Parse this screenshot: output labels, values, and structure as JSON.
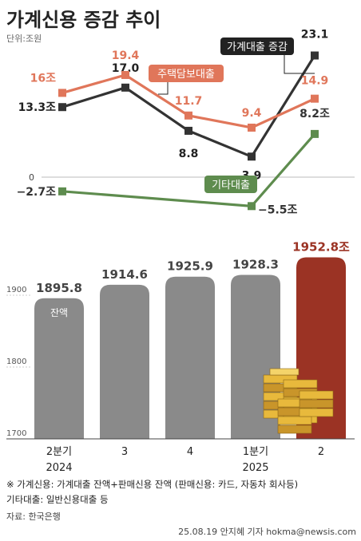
{
  "title": "가계신용 증감 추이",
  "unit": "단위:조원",
  "line_chart": {
    "type": "line",
    "categories": [
      "2024 Q2",
      "2024 Q3",
      "2024 Q4",
      "2025 Q1",
      "2025 Q2"
    ],
    "series": [
      {
        "name": "가계대출 증감",
        "values": [
          13.3,
          17.0,
          8.8,
          3.9,
          23.1
        ],
        "labels": [
          "13.3조",
          "17.0",
          "8.8",
          "3.9",
          "23.1"
        ],
        "color": "#333333"
      },
      {
        "name": "주택담보대출",
        "values": [
          16,
          19.4,
          11.7,
          9.4,
          14.9
        ],
        "labels": [
          "16조",
          "19.4",
          "11.7",
          "9.4",
          "14.9"
        ],
        "color": "#e0765a"
      },
      {
        "name": "기타대출",
        "values": [
          -2.7,
          null,
          null,
          -5.5,
          8.2
        ],
        "labels": [
          "−2.7조",
          "",
          "",
          "−5.5조",
          "8.2조"
        ],
        "color": "#5e8c4e"
      }
    ],
    "y_zero_label": "0"
  },
  "chart_data": {
    "type": "bar",
    "categories": [
      "2분기 2024",
      "3",
      "4",
      "1분기 2025",
      "2"
    ],
    "x_tick_top": [
      "2분기",
      "3",
      "4",
      "1분기",
      "2"
    ],
    "x_tick_bottom": [
      "2024",
      "",
      "",
      "2025",
      ""
    ],
    "values": [
      1895.8,
      1914.6,
      1925.9,
      1928.3,
      1952.8
    ],
    "value_labels": [
      "1895.8",
      "1914.6",
      "1925.9",
      "1928.3",
      "1952.8조"
    ],
    "bar_inner_label": "잔액",
    "y_ticks": [
      "1900",
      "1800",
      "1700"
    ],
    "ylim": [
      1700,
      1960
    ],
    "bar_color": "#8a8a8a",
    "highlight_color": "#9b3324"
  },
  "notes": {
    "line1": "※ 가계신용: 가계대출 잔액+판매신용 잔액 (판매신용: 카드, 자동차 회사등)",
    "line2": "기타대출: 일반신용대출 등",
    "source": "자료: 한국은행",
    "credit": "25.08.19 안지혜 기자 hokma@newsis.com"
  }
}
